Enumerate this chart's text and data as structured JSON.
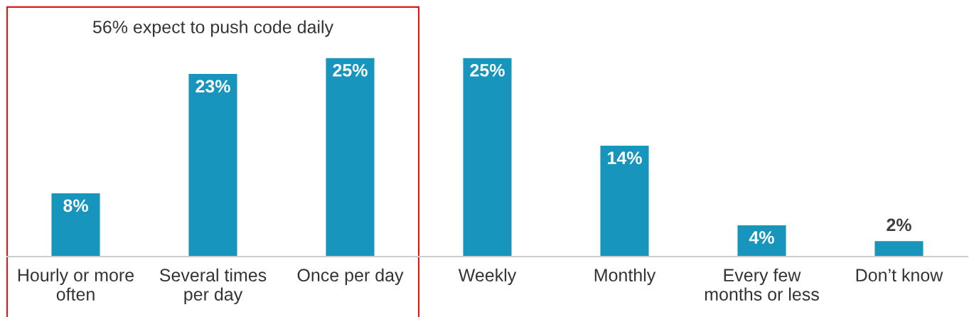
{
  "chart_data": {
    "type": "bar",
    "categories": [
      "Hourly or more\noften",
      "Several times\nper day",
      "Once per day",
      "Weekly",
      "Monthly",
      "Every few\nmonths or less",
      "Don’t know"
    ],
    "values": [
      8,
      23,
      25,
      25,
      14,
      4,
      2
    ],
    "color": "#1795bd",
    "value_labels": [
      "8%",
      "23%",
      "25%",
      "25%",
      "14%",
      "4%",
      "2%"
    ],
    "annotations": [
      "56% expect to push code daily"
    ],
    "grid": false,
    "legend": false
  }
}
